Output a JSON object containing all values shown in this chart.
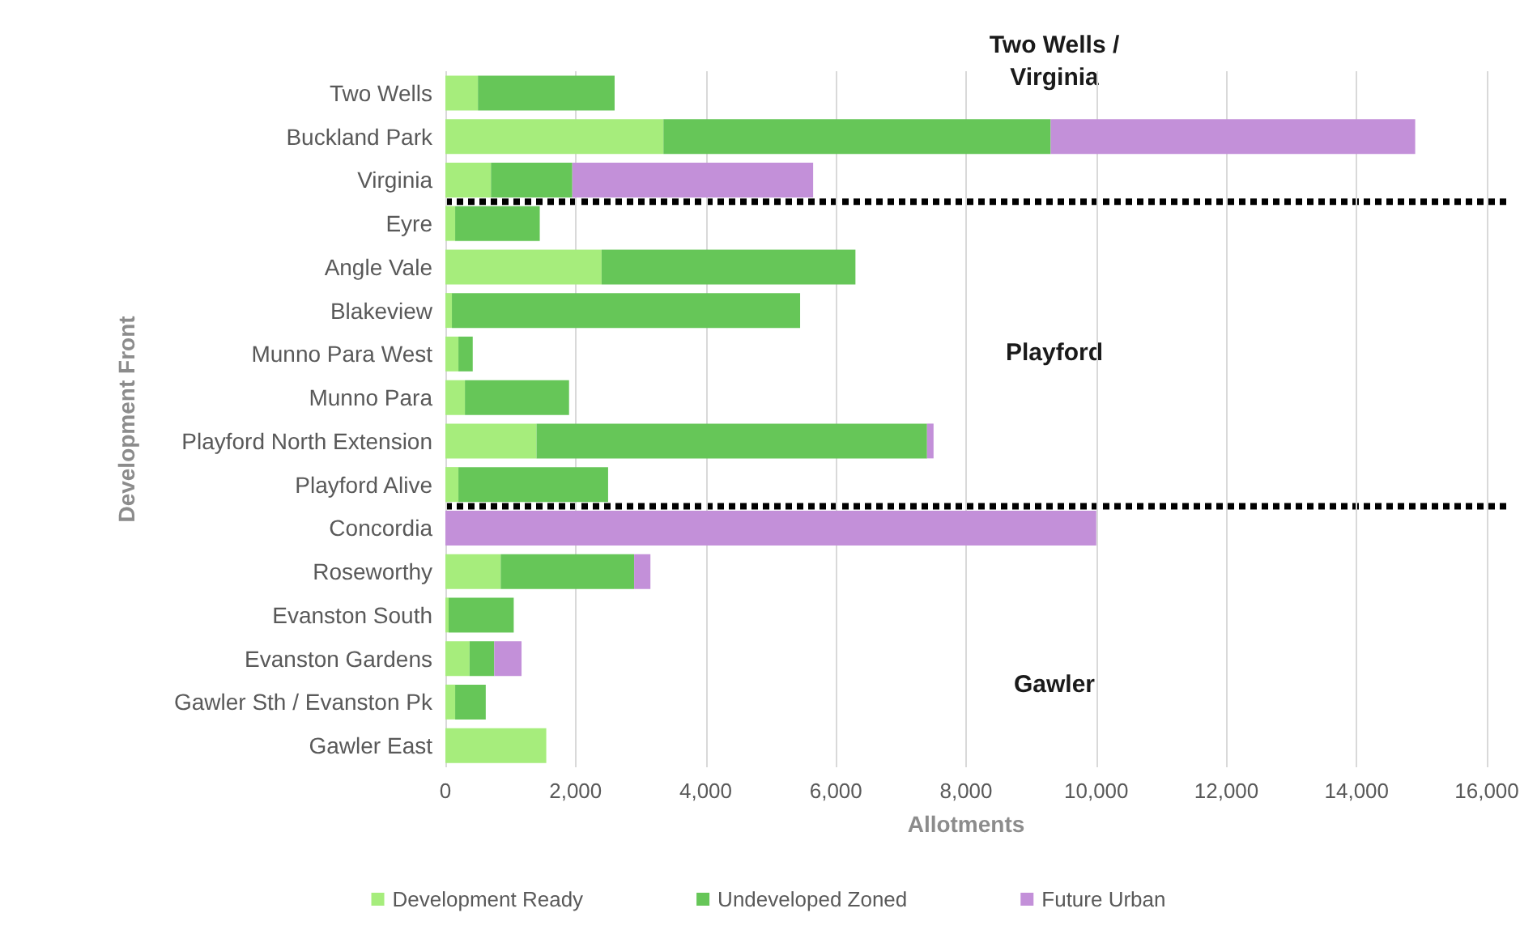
{
  "chart_data": {
    "type": "bar",
    "orientation": "horizontal",
    "stacked": true,
    "xlabel": "Allotments",
    "ylabel": "Development Front",
    "categories": [
      "Two Wells",
      "Buckland Park",
      "Virginia",
      "Eyre",
      "Angle Vale",
      "Blakeview",
      "Munno Para West",
      "Munno Para",
      "Playford North Extension",
      "Playford Alive",
      "Concordia",
      "Roseworthy",
      "Evanston South",
      "Evanston Gardens",
      "Gawler Sth / Evanston Pk",
      "Gawler East"
    ],
    "series": [
      {
        "name": "Development Ready",
        "color": "#a6ed7c",
        "values": [
          500,
          3350,
          700,
          150,
          2400,
          100,
          200,
          300,
          1400,
          200,
          0,
          850,
          50,
          370,
          150,
          1550
        ]
      },
      {
        "name": "Undeveloped Zoned",
        "color": "#66c658",
        "values": [
          2100,
          5950,
          1250,
          1300,
          3900,
          5350,
          220,
          1600,
          6000,
          2300,
          0,
          2050,
          1000,
          380,
          470,
          0
        ]
      },
      {
        "name": "Future Urban",
        "color": "#c390d9",
        "values": [
          0,
          5600,
          3700,
          0,
          0,
          0,
          0,
          0,
          100,
          0,
          10000,
          250,
          0,
          420,
          0,
          0
        ]
      }
    ],
    "xlim": [
      0,
      16000
    ],
    "xticks": [
      {
        "value": 0,
        "label": "0"
      },
      {
        "value": 2000,
        "label": "2,000"
      },
      {
        "value": 4000,
        "label": "4,000"
      },
      {
        "value": 6000,
        "label": "6,000"
      },
      {
        "value": 8000,
        "label": "8,000"
      },
      {
        "value": 10000,
        "label": "10,000"
      },
      {
        "value": 12000,
        "label": "12,000"
      },
      {
        "value": 14000,
        "label": "14,000"
      },
      {
        "value": 16000,
        "label": "16,000"
      }
    ],
    "grid": "x",
    "legend": "bottom",
    "annotations": [
      "Two Wells /\nVirginia",
      "Playford",
      "Gawler"
    ]
  }
}
